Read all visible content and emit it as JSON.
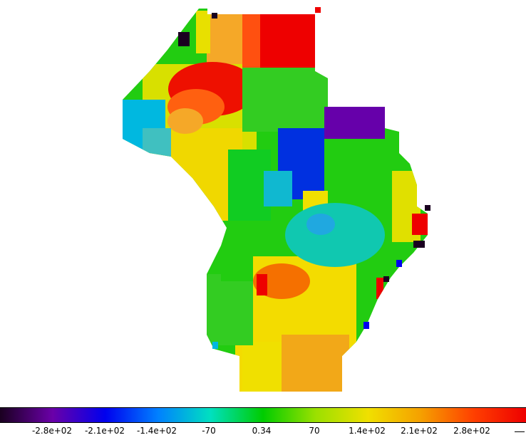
{
  "map_data": {
    "type": "raster-choropleth",
    "description_colormap": "rainbow (black-purple-blue-cyan-green-yellow-orange-red)"
  },
  "colorbar": {
    "ticks": [
      "-2.8e+02",
      "-2.1e+02",
      "-1.4e+02",
      "-70",
      "0.34",
      "70",
      "1.4e+02",
      "2.1e+02",
      "2.8e+02"
    ],
    "range": [
      -350,
      350
    ],
    "colors": [
      "#1a0020",
      "#6a00a8",
      "#0000ee",
      "#0080ff",
      "#00e0c0",
      "#00cc00",
      "#9be000",
      "#f0e000",
      "#f5a000",
      "#ff4000",
      "#ee0000"
    ]
  }
}
